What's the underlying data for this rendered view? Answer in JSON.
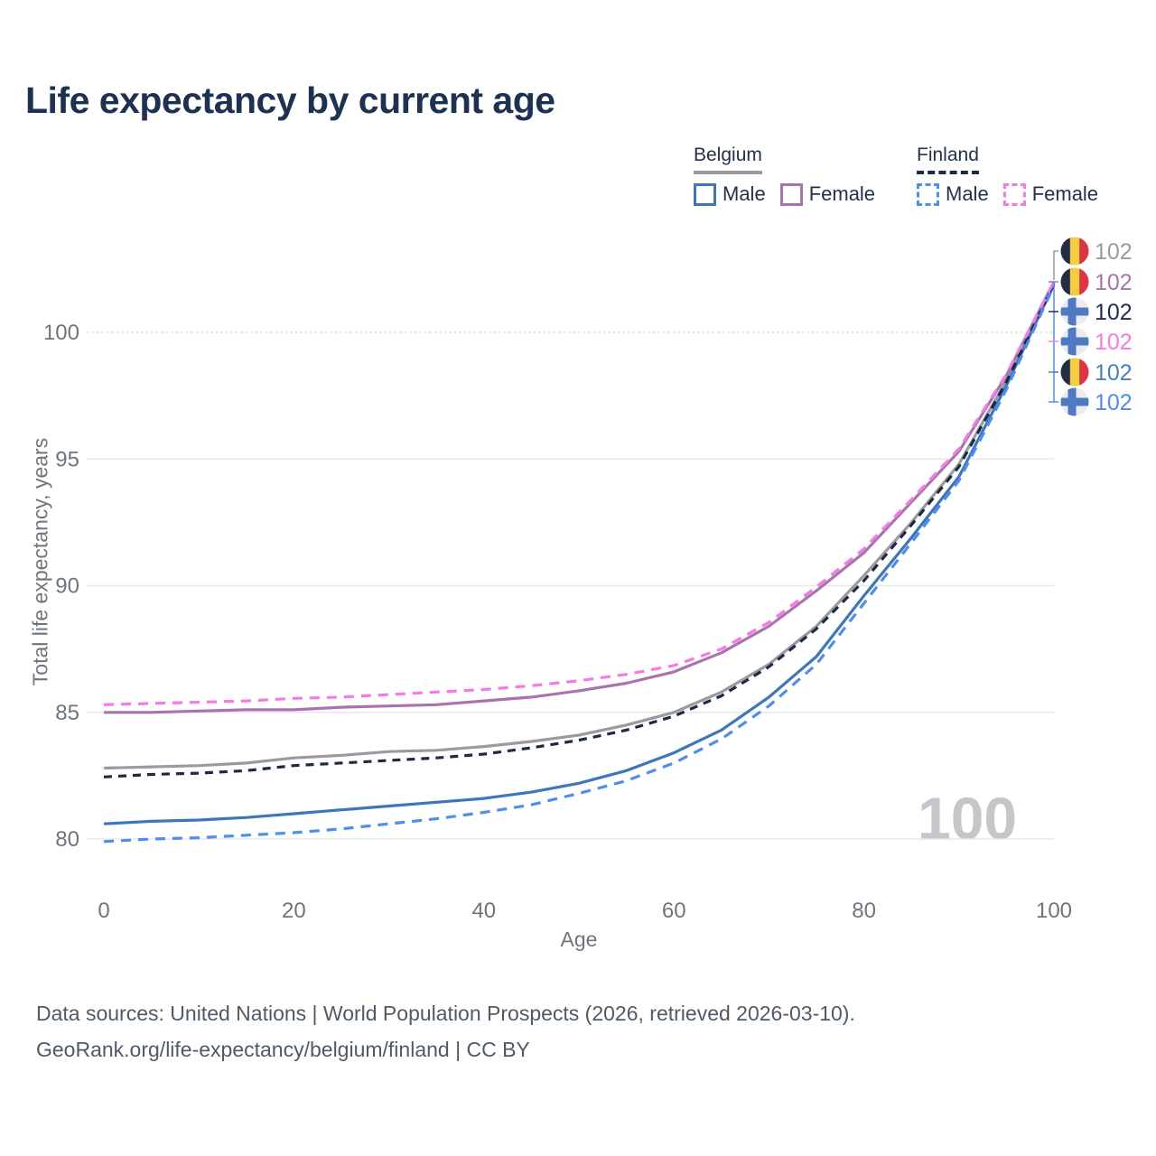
{
  "title": "Life expectancy by current age",
  "legend": {
    "groups": [
      {
        "id": "belgium",
        "label": "Belgium",
        "line_style": "solid",
        "line_color": "#9b9b9f",
        "items": [
          {
            "label": "Male",
            "color": "#3d76bb",
            "dash": false
          },
          {
            "label": "Female",
            "color": "#a973ae",
            "dash": false
          }
        ]
      },
      {
        "id": "finland",
        "label": "Finland",
        "line_style": "dashed",
        "line_color": "#1b2b45",
        "items": [
          {
            "label": "Male",
            "color": "#4e8df2",
            "dash": true
          },
          {
            "label": "Female",
            "color": "#f878e8",
            "dash": true
          }
        ]
      }
    ]
  },
  "chart_data": {
    "type": "line",
    "title": "Life expectancy by current age",
    "xlabel": "Age",
    "ylabel": "Total life expectancy, years",
    "xlim": [
      0,
      100
    ],
    "ylim": [
      79,
      102.5
    ],
    "xticks": [
      0,
      20,
      40,
      60,
      80,
      100
    ],
    "yticks": [
      80,
      85,
      90,
      95,
      100
    ],
    "dotted_gridline_at": 100,
    "grid": "horizontal",
    "legend_position": "top-right",
    "x": [
      0,
      5,
      10,
      15,
      20,
      25,
      30,
      35,
      40,
      45,
      50,
      55,
      60,
      65,
      70,
      75,
      80,
      85,
      90,
      95,
      100
    ],
    "series": [
      {
        "name": "Belgium Total",
        "country": "Belgium",
        "sex": "Total",
        "color": "#9b9b9f",
        "dash": false,
        "values": [
          82.8,
          82.85,
          82.9,
          83.0,
          83.2,
          83.3,
          83.45,
          83.5,
          83.65,
          83.85,
          84.1,
          84.5,
          85.0,
          85.8,
          86.9,
          88.4,
          90.4,
          92.5,
          94.8,
          98.1,
          101.95
        ]
      },
      {
        "name": "Belgium Female",
        "country": "Belgium",
        "sex": "Female",
        "color": "#a973ae",
        "dash": false,
        "values": [
          85.0,
          85.0,
          85.05,
          85.1,
          85.1,
          85.2,
          85.25,
          85.3,
          85.45,
          85.6,
          85.85,
          86.15,
          86.6,
          87.35,
          88.4,
          89.8,
          91.3,
          93.3,
          95.3,
          98.3,
          102.0
        ]
      },
      {
        "name": "Belgium Male",
        "country": "Belgium",
        "sex": "Male",
        "color": "#3d76bb",
        "dash": false,
        "values": [
          80.6,
          80.7,
          80.75,
          80.85,
          81.0,
          81.15,
          81.3,
          81.45,
          81.6,
          81.85,
          82.2,
          82.7,
          83.4,
          84.3,
          85.6,
          87.2,
          89.6,
          91.9,
          94.3,
          97.9,
          101.9
        ]
      },
      {
        "name": "Finland Total",
        "country": "Finland",
        "sex": "Total",
        "color": "#1b2b45",
        "dash": true,
        "values": [
          82.45,
          82.55,
          82.6,
          82.7,
          82.9,
          83.0,
          83.1,
          83.2,
          83.35,
          83.6,
          83.9,
          84.3,
          84.85,
          85.65,
          86.8,
          88.3,
          90.2,
          92.4,
          94.7,
          98.05,
          101.9
        ]
      },
      {
        "name": "Finland Female",
        "country": "Finland",
        "sex": "Female",
        "color": "#f878e8",
        "dash": true,
        "values": [
          85.3,
          85.35,
          85.4,
          85.45,
          85.55,
          85.6,
          85.7,
          85.8,
          85.9,
          86.05,
          86.25,
          86.5,
          86.85,
          87.5,
          88.55,
          89.95,
          91.45,
          93.4,
          95.4,
          98.35,
          102.0
        ]
      },
      {
        "name": "Finland Male",
        "country": "Finland",
        "sex": "Male",
        "color": "#4e8df2",
        "dash": true,
        "values": [
          79.9,
          80.0,
          80.05,
          80.15,
          80.25,
          80.4,
          80.6,
          80.8,
          81.05,
          81.35,
          81.8,
          82.3,
          83.0,
          83.95,
          85.25,
          86.9,
          89.3,
          91.7,
          94.15,
          97.75,
          101.85
        ]
      }
    ],
    "end_labels": [
      {
        "flag": "belgium",
        "value": "102",
        "color": "#9b9b9f",
        "series": "Belgium Total"
      },
      {
        "flag": "belgium",
        "value": "102",
        "color": "#a973ae",
        "series": "Belgium Female"
      },
      {
        "flag": "finland",
        "value": "102",
        "color": "#1d2e4e",
        "series": "Finland Total"
      },
      {
        "flag": "finland",
        "value": "102",
        "color": "#f878e8",
        "series": "Finland Female"
      },
      {
        "flag": "belgium",
        "value": "102",
        "color": "#4a7ec0",
        "series": "Belgium Male"
      },
      {
        "flag": "finland",
        "value": "102",
        "color": "#4b8bf5",
        "series": "Finland Male"
      }
    ]
  },
  "watermark": "100",
  "footer": {
    "line1": "Data sources: United Nations | World Population Prospects (2026, retrieved 2026-03-10).",
    "line2": "GeoRank.org/life-expectancy/belgium/finland | CC BY"
  }
}
